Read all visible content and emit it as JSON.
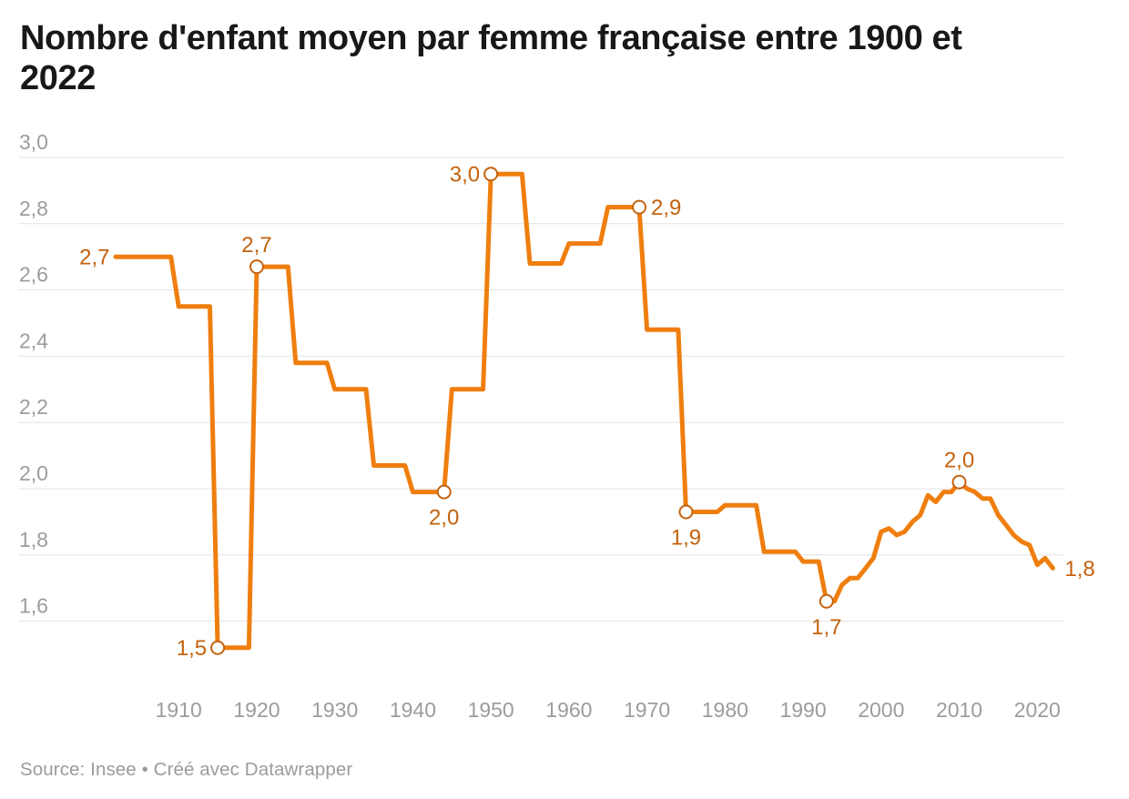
{
  "header": {
    "title_line1": "Nombre d'enfant moyen par femme française entre 1900 et",
    "title_line2": "2022"
  },
  "footer": {
    "source_note": "Source: Insee • Créé avec Datawrapper"
  },
  "chart_data": {
    "type": "line",
    "title": "Nombre d'enfant moyen par femme française entre 1900 et 2022",
    "series_name": "Nombre d'enfant moyen par femme française",
    "x": [
      1900,
      1909,
      1910,
      1914,
      1915,
      1919,
      1920,
      1924,
      1925,
      1929,
      1930,
      1934,
      1935,
      1939,
      1940,
      1944,
      1945,
      1949,
      1950,
      1954,
      1955,
      1959,
      1960,
      1964,
      1965,
      1969,
      1970,
      1974,
      1975,
      1979,
      1980,
      1984,
      1985,
      1989,
      1990,
      1992,
      1993,
      1994,
      1995,
      1996,
      1997,
      1998,
      1999,
      2000,
      2001,
      2002,
      2003,
      2004,
      2005,
      2006,
      2007,
      2008,
      2009,
      2010,
      2011,
      2012,
      2013,
      2014,
      2015,
      2016,
      2017,
      2018,
      2019,
      2020,
      2021,
      2022
    ],
    "y": [
      2.7,
      2.7,
      2.55,
      2.55,
      1.52,
      1.52,
      2.67,
      2.67,
      2.38,
      2.38,
      2.3,
      2.3,
      2.07,
      2.07,
      1.99,
      1.99,
      2.3,
      2.3,
      2.95,
      2.95,
      2.68,
      2.68,
      2.74,
      2.74,
      2.85,
      2.85,
      2.48,
      2.48,
      1.93,
      1.93,
      1.95,
      1.95,
      1.81,
      1.81,
      1.78,
      1.78,
      1.66,
      1.66,
      1.71,
      1.73,
      1.73,
      1.76,
      1.79,
      1.87,
      1.88,
      1.86,
      1.87,
      1.9,
      1.92,
      1.98,
      1.96,
      1.99,
      1.99,
      2.02,
      2.0,
      1.99,
      1.97,
      1.97,
      1.92,
      1.89,
      1.86,
      1.84,
      1.83,
      1.77,
      1.79,
      1.76
    ],
    "xlim": [
      1900,
      2022
    ],
    "ylim": [
      1.5,
      3.0
    ],
    "grid": "horizontal",
    "legend": "none",
    "y_ticks": [
      {
        "value": 3.0,
        "label": "3,0"
      },
      {
        "value": 2.8,
        "label": "2,8"
      },
      {
        "value": 2.6,
        "label": "2,6"
      },
      {
        "value": 2.4,
        "label": "2,4"
      },
      {
        "value": 2.2,
        "label": "2,2"
      },
      {
        "value": 2.0,
        "label": "2,0"
      },
      {
        "value": 1.8,
        "label": "1,8"
      },
      {
        "value": 1.6,
        "label": "1,6"
      }
    ],
    "x_ticks": [
      {
        "value": 1910,
        "label": "1910"
      },
      {
        "value": 1920,
        "label": "1920"
      },
      {
        "value": 1930,
        "label": "1930"
      },
      {
        "value": 1940,
        "label": "1940"
      },
      {
        "value": 1950,
        "label": "1950"
      },
      {
        "value": 1960,
        "label": "1960"
      },
      {
        "value": 1970,
        "label": "1970"
      },
      {
        "value": 1980,
        "label": "1980"
      },
      {
        "value": 1990,
        "label": "1990"
      },
      {
        "value": 2000,
        "label": "2000"
      },
      {
        "value": 2010,
        "label": "2010"
      },
      {
        "value": 2020,
        "label": "2020"
      }
    ],
    "annotations": [
      {
        "year": 1900,
        "value": 2.7,
        "label": "2,7",
        "marker": false,
        "placement": "start"
      },
      {
        "year": 1915,
        "value": 1.52,
        "label": "1,5",
        "marker": true,
        "placement": "left"
      },
      {
        "year": 1920,
        "value": 2.67,
        "label": "2,7",
        "marker": true,
        "placement": "above"
      },
      {
        "year": 1944,
        "value": 1.99,
        "label": "2,0",
        "marker": true,
        "placement": "below"
      },
      {
        "year": 1950,
        "value": 2.95,
        "label": "3,0",
        "marker": true,
        "placement": "left"
      },
      {
        "year": 1969,
        "value": 2.85,
        "label": "2,9",
        "marker": true,
        "placement": "right"
      },
      {
        "year": 1975,
        "value": 1.93,
        "label": "1,9",
        "marker": true,
        "placement": "below"
      },
      {
        "year": 1993,
        "value": 1.66,
        "label": "1,7",
        "marker": true,
        "placement": "below"
      },
      {
        "year": 2010,
        "value": 2.02,
        "label": "2,0",
        "marker": true,
        "placement": "above"
      },
      {
        "year": 2022,
        "value": 1.76,
        "label": "1,8",
        "marker": false,
        "placement": "right"
      }
    ],
    "colors": {
      "line": "#ef7e0e",
      "labels": "#c4620e",
      "grid": "#e3e3e3",
      "axis_text": "#9c9c9c",
      "title_text": "#181818",
      "background": "#ffffff"
    }
  }
}
